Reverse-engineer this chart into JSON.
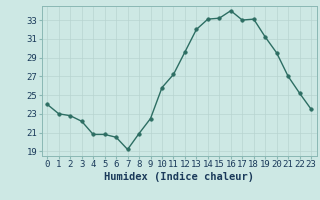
{
  "x": [
    0,
    1,
    2,
    3,
    4,
    5,
    6,
    7,
    8,
    9,
    10,
    11,
    12,
    13,
    14,
    15,
    16,
    17,
    18,
    19,
    20,
    21,
    22,
    23
  ],
  "y": [
    24.0,
    23.0,
    22.8,
    22.2,
    20.8,
    20.8,
    20.5,
    19.2,
    20.9,
    22.5,
    25.8,
    27.2,
    29.6,
    32.0,
    33.1,
    33.2,
    34.0,
    33.0,
    33.1,
    31.2,
    29.5,
    27.0,
    25.2,
    23.5
  ],
  "bg_color": "#cde8e4",
  "line_color": "#2d6e63",
  "marker_color": "#2d6e63",
  "grid_color": "#b8d4d0",
  "xlabel": "Humidex (Indice chaleur)",
  "ylim": [
    18.5,
    34.5
  ],
  "yticks": [
    19,
    21,
    23,
    25,
    27,
    29,
    31,
    33
  ],
  "xticks": [
    0,
    1,
    2,
    3,
    4,
    5,
    6,
    7,
    8,
    9,
    10,
    11,
    12,
    13,
    14,
    15,
    16,
    17,
    18,
    19,
    20,
    21,
    22,
    23
  ],
  "xlabel_fontsize": 7.5,
  "tick_fontsize": 6.5,
  "line_width": 1.0,
  "marker_size": 2.5
}
